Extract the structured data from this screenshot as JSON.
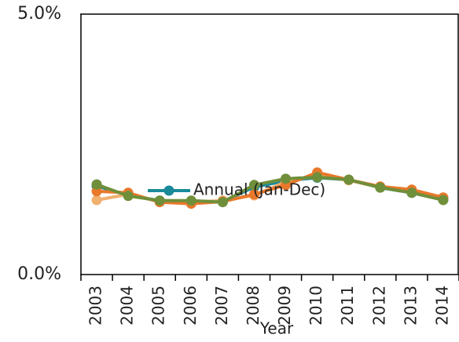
{
  "chart_data": {
    "type": "line",
    "x_label": "Year",
    "categories": [
      "2003",
      "2004",
      "2005",
      "2006",
      "2007",
      "2008",
      "2009",
      "2010",
      "2011",
      "2012",
      "2013",
      "2014"
    ],
    "series": [
      {
        "name": "Annual (Jan-Dec)",
        "color": "#1a8a9a",
        "values": [
          1.7,
          1.52,
          1.42,
          1.41,
          1.4,
          1.68,
          1.8,
          1.86,
          1.82,
          1.67,
          1.57,
          1.44
        ]
      },
      {
        "color": "#f0b070",
        "values": [
          1.43,
          1.54,
          1.4,
          1.39,
          1.42,
          1.52,
          1.78,
          1.9,
          1.81,
          1.67,
          1.6,
          1.46
        ]
      },
      {
        "color": "#e8782a",
        "values": [
          1.6,
          1.57,
          1.39,
          1.36,
          1.4,
          1.54,
          1.72,
          1.96,
          1.82,
          1.69,
          1.63,
          1.48
        ]
      },
      {
        "color": "#6f8f3a",
        "values": [
          1.73,
          1.51,
          1.42,
          1.42,
          1.39,
          1.72,
          1.84,
          1.87,
          1.82,
          1.67,
          1.57,
          1.43
        ]
      }
    ],
    "ylim": [
      0,
      5
    ],
    "yticks": [
      {
        "value": 0,
        "label": "0.0%"
      },
      {
        "value": 5,
        "label": "5.0%"
      }
    ]
  }
}
